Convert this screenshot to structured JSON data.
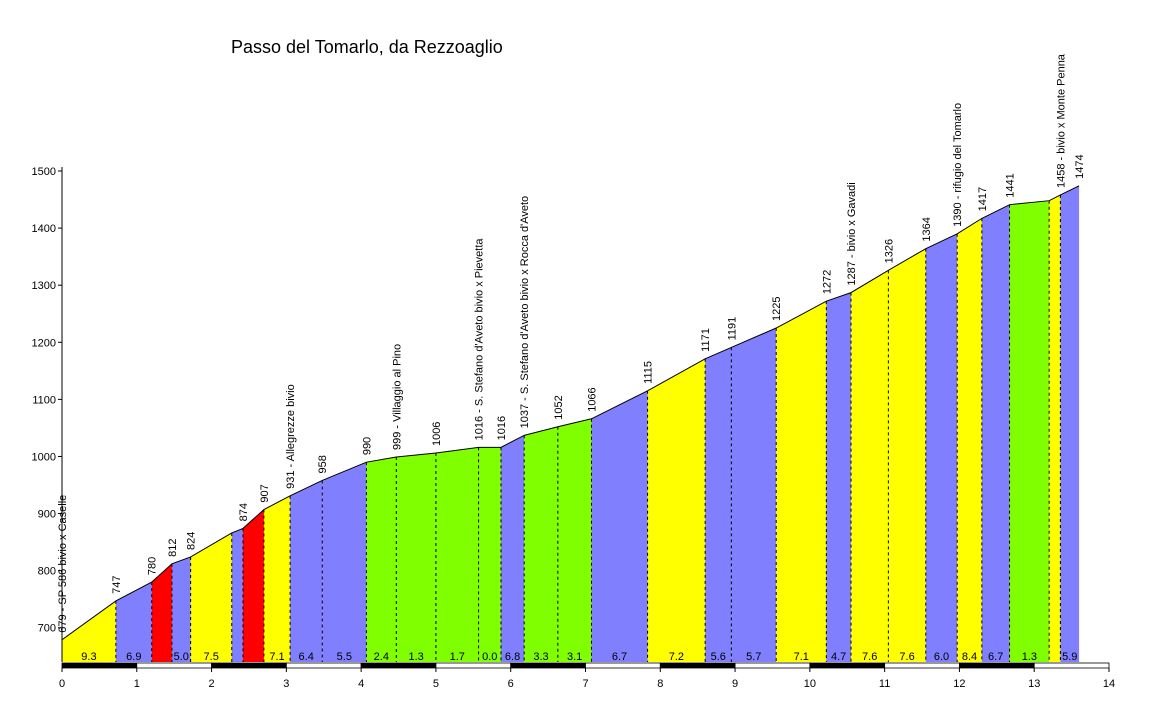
{
  "chart_data": {
    "type": "area",
    "title": "Passo del Tomarlo, da Rezzoaglio",
    "xlabel": "",
    "ylabel": "",
    "xlim": [
      0,
      14
    ],
    "ylim": [
      640,
      1500
    ],
    "x_ticks": [
      0,
      1,
      2,
      3,
      4,
      5,
      6,
      7,
      8,
      9,
      10,
      11,
      12,
      13,
      14
    ],
    "y_ticks": [
      700,
      800,
      900,
      1000,
      1100,
      1200,
      1300,
      1400,
      1500
    ],
    "colors": {
      "yellow": "#ffff00",
      "blue": "#8080ff",
      "red": "#ff0000",
      "green": "#80ff00",
      "line": "#000000"
    },
    "points": [
      {
        "x": 0.0,
        "y": 679,
        "label": "679 - SP 586  bivio x Caselle"
      },
      {
        "x": 0.72,
        "y": 747,
        "label": "747"
      },
      {
        "x": 1.2,
        "y": 780,
        "label": "780"
      },
      {
        "x": 1.47,
        "y": 812,
        "label": "812"
      },
      {
        "x": 1.72,
        "y": 824,
        "label": "824"
      },
      {
        "x": 2.27,
        "y": 866,
        "label": ""
      },
      {
        "x": 2.42,
        "y": 874,
        "label": "874"
      },
      {
        "x": 2.7,
        "y": 907,
        "label": "907"
      },
      {
        "x": 3.05,
        "y": 931,
        "label": "931 - Allegrezze  bivio"
      },
      {
        "x": 3.48,
        "y": 958,
        "label": "958"
      },
      {
        "x": 4.07,
        "y": 990,
        "label": "990"
      },
      {
        "x": 4.47,
        "y": 999,
        "label": "999 - Villaggio al Pino"
      },
      {
        "x": 5.0,
        "y": 1006,
        "label": "1006"
      },
      {
        "x": 5.57,
        "y": 1016,
        "label": "1016 - S. Stefano d'Aveto  bivio x Pievetta"
      },
      {
        "x": 5.87,
        "y": 1016,
        "label": "1016"
      },
      {
        "x": 6.18,
        "y": 1037,
        "label": "1037 - S. Stefano d'Aveto  bivio x Rocca d'Aveto"
      },
      {
        "x": 6.63,
        "y": 1052,
        "label": "1052"
      },
      {
        "x": 7.08,
        "y": 1066,
        "label": "1066"
      },
      {
        "x": 7.83,
        "y": 1115,
        "label": "1115"
      },
      {
        "x": 8.6,
        "y": 1171,
        "label": "1171"
      },
      {
        "x": 8.95,
        "y": 1191,
        "label": "1191"
      },
      {
        "x": 9.55,
        "y": 1225,
        "label": "1225"
      },
      {
        "x": 10.22,
        "y": 1272,
        "label": "1272"
      },
      {
        "x": 10.55,
        "y": 1287,
        "label": "1287 - bivio x Gavadi"
      },
      {
        "x": 11.05,
        "y": 1326,
        "label": "1326"
      },
      {
        "x": 11.55,
        "y": 1364,
        "label": "1364"
      },
      {
        "x": 11.97,
        "y": 1390,
        "label": "1390 - rifugio del Tomarlo"
      },
      {
        "x": 12.3,
        "y": 1417,
        "label": "1417"
      },
      {
        "x": 12.67,
        "y": 1441,
        "label": "1441"
      },
      {
        "x": 13.2,
        "y": 1448,
        "label": ""
      },
      {
        "x": 13.35,
        "y": 1458,
        "label": "1458 - bivio x Monte Penna"
      },
      {
        "x": 13.6,
        "y": 1474,
        "label": "1474"
      }
    ],
    "segments": [
      {
        "grade": "9.3",
        "color": "yellow"
      },
      {
        "grade": "6.9",
        "color": "blue"
      },
      {
        "grade": "",
        "color": "red"
      },
      {
        "grade": "5.0",
        "color": "blue"
      },
      {
        "grade": "7.5",
        "color": "yellow"
      },
      {
        "grade": "",
        "color": "blue"
      },
      {
        "grade": "",
        "color": "red"
      },
      {
        "grade": "7.1",
        "color": "yellow"
      },
      {
        "grade": "6.4",
        "color": "blue"
      },
      {
        "grade": "5.5",
        "color": "blue"
      },
      {
        "grade": "2.4",
        "color": "green"
      },
      {
        "grade": "1.3",
        "color": "green"
      },
      {
        "grade": "1.7",
        "color": "green"
      },
      {
        "grade": "0.0",
        "color": "green"
      },
      {
        "grade": "6.8",
        "color": "blue"
      },
      {
        "grade": "3.3",
        "color": "green"
      },
      {
        "grade": "3.1",
        "color": "green"
      },
      {
        "grade": "6.7",
        "color": "blue"
      },
      {
        "grade": "7.2",
        "color": "yellow"
      },
      {
        "grade": "5.6",
        "color": "blue"
      },
      {
        "grade": "5.7",
        "color": "blue"
      },
      {
        "grade": "7.1",
        "color": "yellow"
      },
      {
        "grade": "4.7",
        "color": "blue"
      },
      {
        "grade": "7.6",
        "color": "yellow"
      },
      {
        "grade": "7.6",
        "color": "yellow"
      },
      {
        "grade": "6.0",
        "color": "blue"
      },
      {
        "grade": "8.4",
        "color": "yellow"
      },
      {
        "grade": "6.7",
        "color": "blue"
      },
      {
        "grade": "1.3",
        "color": "green"
      },
      {
        "grade": "",
        "color": "yellow"
      },
      {
        "grade": "5.9",
        "color": "blue"
      }
    ]
  }
}
